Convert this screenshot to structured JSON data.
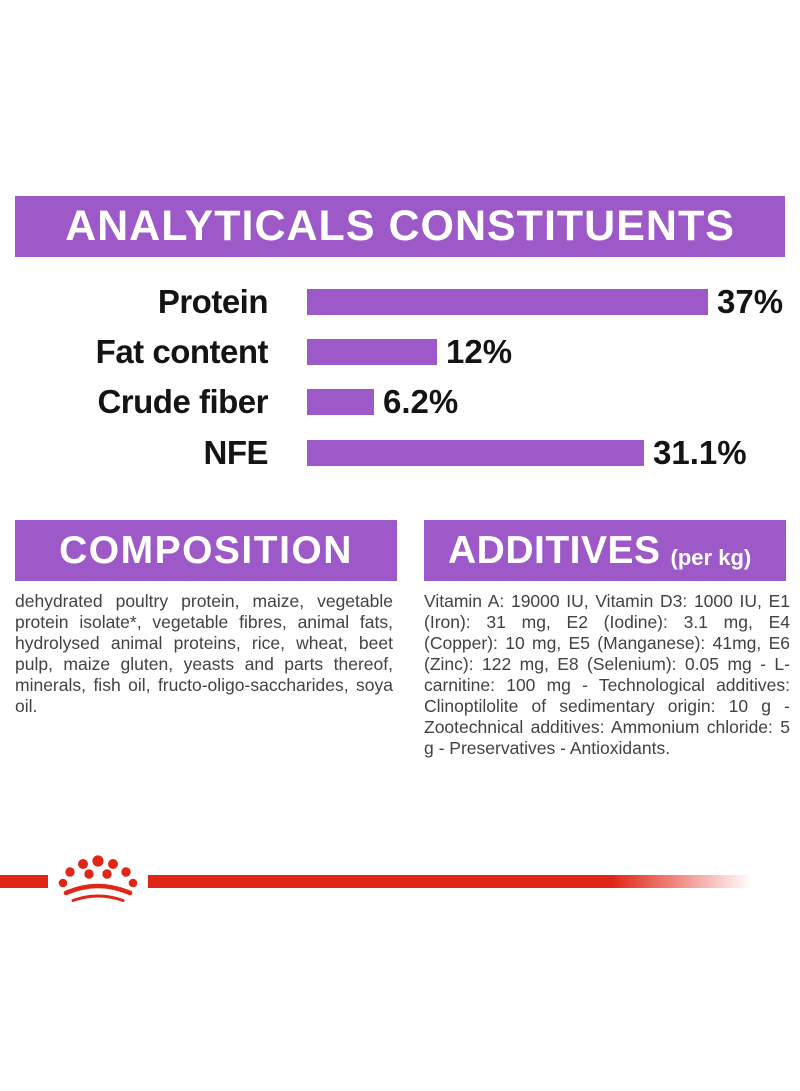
{
  "colors": {
    "purple": "#9C59C7",
    "red": "#E02617",
    "banner_text": "#FFFFFF",
    "chart_text": "#141414",
    "body_text": "#424242"
  },
  "header": {
    "title": "ANALYTICALS CONSTITUENTS"
  },
  "chart_data": {
    "type": "bar",
    "orientation": "horizontal",
    "title": "ANALYTICALS CONSTITUENTS",
    "categories": [
      "Protein",
      "Fat content",
      "Crude fiber",
      "NFE"
    ],
    "values": [
      37,
      12,
      6.2,
      31.1
    ],
    "value_labels": [
      "37%",
      "12%",
      "6.2%",
      "31.1%"
    ],
    "unit": "%",
    "xlim": [
      0,
      44
    ],
    "bar_color": "#9C59C7",
    "grid": false,
    "legend": false
  },
  "composition": {
    "title": "COMPOSITION",
    "body": "dehydrated poultry protein, maize, vegetable protein isolate*, vegetable fibres, animal fats, hydrolysed animal proteins, rice, wheat, beet pulp, maize gluten, yeasts and parts thereof, minerals, fish oil, fructo-oligo-saccharides, soya oil."
  },
  "additives": {
    "title": "ADDITIVES",
    "subtitle": "(per kg)",
    "body": "Vitamin A: 19000 IU, Vitamin D3: 1000 IU, E1 (Iron): 31 mg, E2 (Iodine): 3.1 mg, E4 (Copper): 10 mg, E5 (Manganese): 41mg, E6 (Zinc): 122 mg, E8 (Selenium): 0.05 mg - L- carnitine: 100 mg - Technological additives: Clinoptilolite of sedimentary origin: 10 g -Zootechnical additives: Ammonium chloride: 5 g - Preservatives - Antioxidants."
  },
  "footer": {
    "logo": "royal-canin-paw-crown"
  }
}
